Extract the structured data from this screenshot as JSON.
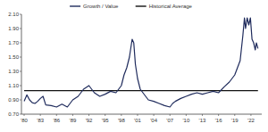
{
  "chart_data": {
    "type": "line",
    "x": [
      1980,
      1980.5,
      1981,
      1981.5,
      1982,
      1982.5,
      1983,
      1983.5,
      1984,
      1985,
      1986,
      1987,
      1988,
      1989,
      1990,
      1991,
      1992,
      1993,
      1994,
      1995,
      1996,
      1997,
      1998,
      1998.5,
      1999,
      1999.5,
      2000,
      2000.3,
      2000.6,
      2001,
      2001.5,
      2002,
      2003,
      2004,
      2005,
      2006,
      2007,
      2007.5,
      2008,
      2009,
      2010,
      2011,
      2012,
      2013,
      2014,
      2015,
      2016,
      2017,
      2018,
      2019,
      2020,
      2020.5,
      2020.8,
      2021,
      2021.3,
      2021.6,
      2021.9,
      2022.2,
      2022.5,
      2022.8,
      2023,
      2023.3
    ],
    "series": [
      {
        "name": "Growth / Value",
        "color": "#1f2b5c",
        "values": [
          0.88,
          0.97,
          0.9,
          0.86,
          0.85,
          0.88,
          0.92,
          0.95,
          0.83,
          0.82,
          0.8,
          0.84,
          0.8,
          0.9,
          0.95,
          1.05,
          1.1,
          1.0,
          0.95,
          0.98,
          1.02,
          1.0,
          1.1,
          1.25,
          1.35,
          1.5,
          1.75,
          1.7,
          1.4,
          1.2,
          1.05,
          1.0,
          0.9,
          0.88,
          0.85,
          0.82,
          0.8,
          0.85,
          0.88,
          0.92,
          0.95,
          0.98,
          1.0,
          0.98,
          1.0,
          1.02,
          1.0,
          1.08,
          1.15,
          1.25,
          1.45,
          1.8,
          2.05,
          1.9,
          2.05,
          1.95,
          2.05,
          1.75,
          1.7,
          1.6,
          1.7,
          1.62
        ]
      },
      {
        "name": "Historical Average",
        "color": "#111111",
        "values": [
          1.03,
          1.03,
          1.03,
          1.03,
          1.03,
          1.03,
          1.03,
          1.03,
          1.03,
          1.03,
          1.03,
          1.03,
          1.03,
          1.03,
          1.03,
          1.03,
          1.03,
          1.03,
          1.03,
          1.03,
          1.03,
          1.03,
          1.03,
          1.03,
          1.03,
          1.03,
          1.03,
          1.03,
          1.03,
          1.03,
          1.03,
          1.03,
          1.03,
          1.03,
          1.03,
          1.03,
          1.03,
          1.03,
          1.03,
          1.03,
          1.03,
          1.03,
          1.03,
          1.03,
          1.03,
          1.03,
          1.03,
          1.03,
          1.03,
          1.03,
          1.03,
          1.03,
          1.03,
          1.03,
          1.03,
          1.03,
          1.03,
          1.03,
          1.03,
          1.03,
          1.03,
          1.03
        ]
      }
    ],
    "xlim": [
      1979.5,
      2024
    ],
    "xticks": [
      {
        "value": 1980,
        "label": "'80"
      },
      {
        "value": 1983,
        "label": "'83"
      },
      {
        "value": 1986,
        "label": "'86"
      },
      {
        "value": 1989,
        "label": "'89"
      },
      {
        "value": 1992,
        "label": "'92"
      },
      {
        "value": 1995,
        "label": "'95"
      },
      {
        "value": 1998,
        "label": "'98"
      },
      {
        "value": 2001,
        "label": "'01"
      },
      {
        "value": 2004,
        "label": "'04"
      },
      {
        "value": 2007,
        "label": "'07"
      },
      {
        "value": 2010,
        "label": "'10"
      },
      {
        "value": 2013,
        "label": "'13"
      },
      {
        "value": 2016,
        "label": "'16"
      },
      {
        "value": 2019,
        "label": "'19"
      },
      {
        "value": 2022,
        "label": "'22"
      }
    ],
    "ylim": [
      0.7,
      2.1
    ],
    "yticks": [
      {
        "value": 0.7,
        "label": "0.70"
      },
      {
        "value": 0.9,
        "label": "0.90"
      },
      {
        "value": 1.1,
        "label": "1.10"
      },
      {
        "value": 1.3,
        "label": "1.30"
      },
      {
        "value": 1.5,
        "label": "1.50"
      },
      {
        "value": 1.7,
        "label": "1.70"
      },
      {
        "value": 1.9,
        "label": "1.90"
      },
      {
        "value": 2.1,
        "label": "2.10"
      }
    ],
    "grid": false,
    "legend": "top"
  }
}
